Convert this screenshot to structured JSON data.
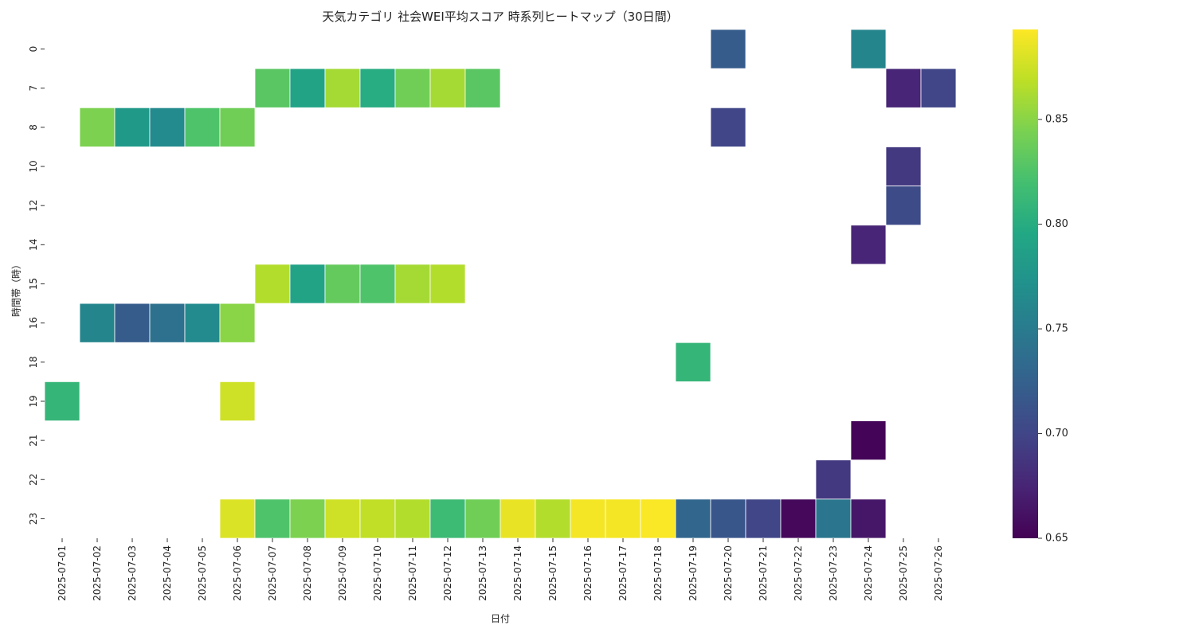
{
  "chart_data": {
    "type": "heatmap",
    "title": "天気カテゴリ 社会WEI平均スコア 時系列ヒートマップ（30日間）",
    "xlabel": "日付",
    "ylabel": "時間帯（時）",
    "x": [
      "2025-07-01",
      "2025-07-02",
      "2025-07-03",
      "2025-07-04",
      "2025-07-05",
      "2025-07-06",
      "2025-07-07",
      "2025-07-08",
      "2025-07-09",
      "2025-07-10",
      "2025-07-11",
      "2025-07-12",
      "2025-07-13",
      "2025-07-14",
      "2025-07-15",
      "2025-07-16",
      "2025-07-17",
      "2025-07-18",
      "2025-07-19",
      "2025-07-20",
      "2025-07-21",
      "2025-07-22",
      "2025-07-23",
      "2025-07-24",
      "2025-07-25",
      "2025-07-26"
    ],
    "y": [
      "0",
      "7",
      "8",
      "10",
      "12",
      "14",
      "15",
      "16",
      "18",
      "19",
      "21",
      "22",
      "23"
    ],
    "values": [
      [
        null,
        null,
        null,
        null,
        null,
        null,
        null,
        null,
        null,
        null,
        null,
        null,
        null,
        null,
        null,
        null,
        null,
        null,
        null,
        0.72,
        null,
        null,
        null,
        0.76,
        null,
        null
      ],
      [
        null,
        null,
        null,
        null,
        null,
        null,
        0.83,
        0.79,
        0.86,
        0.8,
        0.84,
        0.86,
        0.83,
        null,
        null,
        null,
        null,
        null,
        null,
        null,
        null,
        null,
        null,
        null,
        0.675,
        0.7
      ],
      [
        null,
        0.845,
        0.78,
        0.765,
        0.825,
        0.84,
        null,
        null,
        null,
        null,
        null,
        null,
        null,
        null,
        null,
        null,
        null,
        null,
        null,
        0.7,
        null,
        null,
        null,
        null,
        null,
        null
      ],
      [
        null,
        null,
        null,
        null,
        null,
        null,
        null,
        null,
        null,
        null,
        null,
        null,
        null,
        null,
        null,
        null,
        null,
        null,
        null,
        null,
        null,
        null,
        null,
        null,
        0.69,
        null
      ],
      [
        null,
        null,
        null,
        null,
        null,
        null,
        null,
        null,
        null,
        null,
        null,
        null,
        null,
        null,
        null,
        null,
        null,
        null,
        null,
        null,
        null,
        null,
        null,
        null,
        0.705,
        null
      ],
      [
        null,
        null,
        null,
        null,
        null,
        null,
        null,
        null,
        null,
        null,
        null,
        null,
        null,
        null,
        null,
        null,
        null,
        null,
        null,
        null,
        null,
        null,
        null,
        0.675,
        null,
        null
      ],
      [
        null,
        null,
        null,
        null,
        null,
        null,
        0.865,
        0.79,
        0.835,
        0.825,
        0.86,
        0.865,
        null,
        null,
        null,
        null,
        null,
        null,
        null,
        null,
        null,
        null,
        null,
        null,
        null,
        null
      ],
      [
        null,
        0.76,
        0.72,
        0.74,
        0.765,
        0.85,
        null,
        null,
        null,
        null,
        null,
        null,
        null,
        null,
        null,
        null,
        null,
        null,
        null,
        null,
        null,
        null,
        null,
        null,
        null,
        null
      ],
      [
        null,
        null,
        null,
        null,
        null,
        null,
        null,
        null,
        null,
        null,
        null,
        null,
        null,
        null,
        null,
        null,
        null,
        null,
        0.81,
        null,
        null,
        null,
        null,
        null,
        null,
        null
      ],
      [
        0.81,
        null,
        null,
        null,
        null,
        0.875,
        null,
        null,
        null,
        null,
        null,
        null,
        null,
        null,
        null,
        null,
        null,
        null,
        null,
        null,
        null,
        null,
        null,
        null,
        null,
        null
      ],
      [
        null,
        null,
        null,
        null,
        null,
        null,
        null,
        null,
        null,
        null,
        null,
        null,
        null,
        null,
        null,
        null,
        null,
        null,
        null,
        null,
        null,
        null,
        null,
        0.652,
        null,
        null
      ],
      [
        null,
        null,
        null,
        null,
        null,
        null,
        null,
        null,
        null,
        null,
        null,
        null,
        null,
        null,
        null,
        null,
        null,
        null,
        null,
        null,
        null,
        null,
        0.69,
        null,
        null,
        null
      ],
      [
        null,
        null,
        null,
        null,
        null,
        0.88,
        0.825,
        0.845,
        0.875,
        0.87,
        0.865,
        0.815,
        0.84,
        0.885,
        0.865,
        0.89,
        0.89,
        0.892,
        0.73,
        0.715,
        0.7,
        0.655,
        0.745,
        0.665,
        null,
        null
      ]
    ],
    "colorscale": "viridis",
    "vmin": 0.65,
    "vmax": 0.893,
    "colorbar_ticks": [
      "0.65",
      "0.70",
      "0.75",
      "0.80",
      "0.85"
    ],
    "grid": false,
    "legend_position": "right"
  }
}
